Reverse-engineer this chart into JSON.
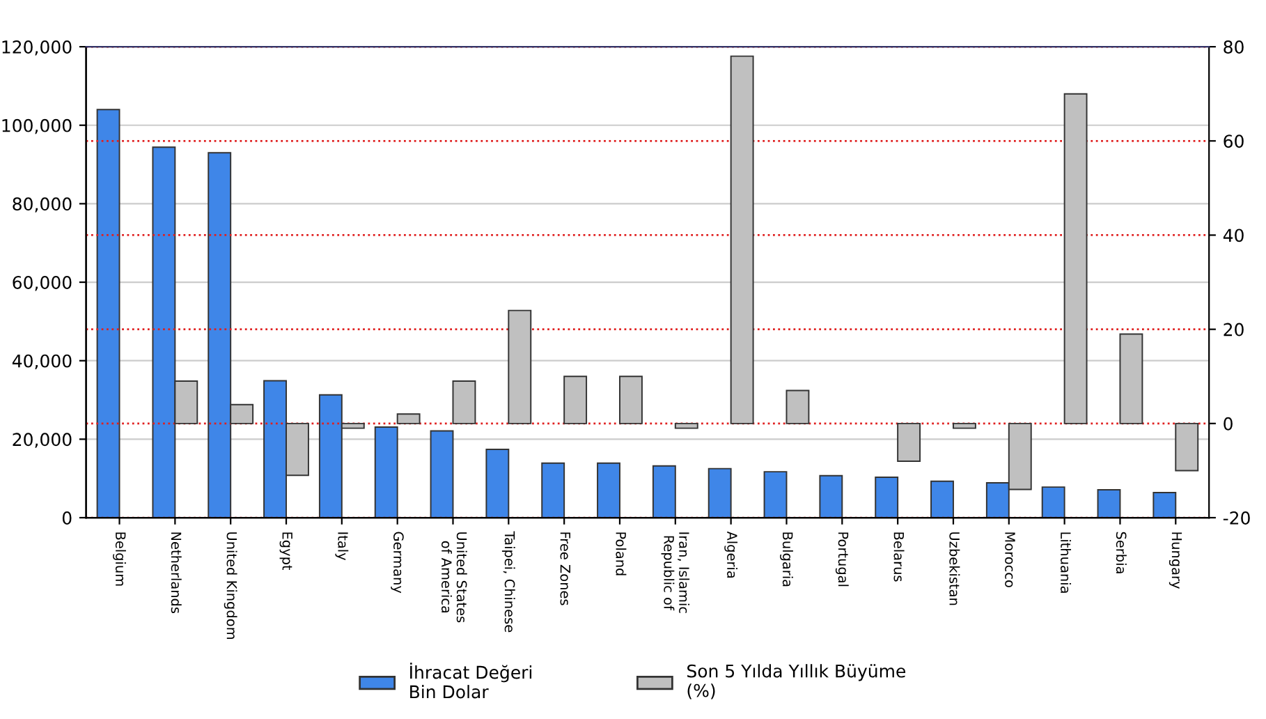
{
  "chart_data": {
    "type": "bar",
    "categories": [
      "Belgium",
      "Netherlands",
      "United Kingdom",
      "Egypt",
      "Italy",
      "Germany",
      "United States\nof America",
      "Taipei, Chinese",
      "Free Zones",
      "Poland",
      "Iran, Islamic\nRepublic of",
      "Algeria",
      "Bulgaria",
      "Portugal",
      "Belarus",
      "Uzbekistan",
      "Morocco",
      "Lithuania",
      "Serbia",
      "Hungary"
    ],
    "series": [
      {
        "name": "İhracat Değeri\nBin Dolar",
        "color": "#3f86e8",
        "values": [
          104000,
          94400,
          93000,
          34900,
          31300,
          23100,
          22100,
          17400,
          13900,
          13900,
          13200,
          12500,
          11700,
          10700,
          10300,
          9300,
          8900,
          7800,
          7100,
          6400
        ]
      },
      {
        "name": "Son 5 Yılda Yıllık Büyüme\n(%)",
        "color": "#c0c0c0",
        "axis": "y2",
        "values": [
          null,
          9,
          4,
          -11,
          -1,
          2,
          9,
          24,
          10,
          10,
          -1,
          78,
          7,
          null,
          -8,
          -1,
          -14,
          70,
          19,
          -10
        ]
      }
    ],
    "ylim": [
      0,
      120000
    ],
    "yticks": [
      {
        "value": 0,
        "label": "0"
      },
      {
        "value": 20000,
        "label": "20,000"
      },
      {
        "value": 40000,
        "label": "40,000"
      },
      {
        "value": 60000,
        "label": "60,000"
      },
      {
        "value": 80000,
        "label": "80,000"
      },
      {
        "value": 100000,
        "label": "100,000"
      },
      {
        "value": 120000,
        "label": "120,000"
      }
    ],
    "y2lim": [
      -20,
      80
    ],
    "y2ticks": [
      -20,
      0,
      20,
      40,
      60,
      80
    ],
    "grid": "y",
    "legend": "bottom"
  }
}
